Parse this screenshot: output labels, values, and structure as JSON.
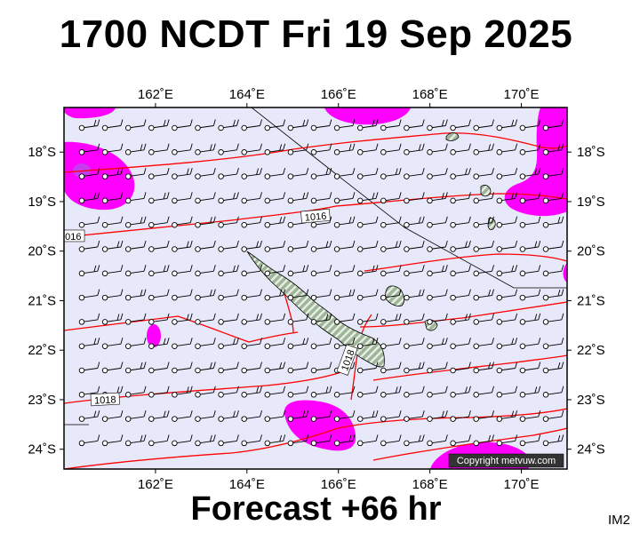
{
  "title": "1700 NCDT Fri 19 Sep 2025",
  "footer": "Forecast +66 hr",
  "corner_label": "IM2",
  "copyright": "Copyright metvuw.com",
  "colors": {
    "ocean": "#e8e8fb",
    "rain": "#ff00ff",
    "rain_light": "#c83cf0",
    "isobar": "#ff0000",
    "land": "#9fb59a",
    "land_stripe": "#e8efe3"
  },
  "map": {
    "lon_range": [
      160,
      171
    ],
    "lat_range": [
      -24.4,
      -17.1
    ],
    "lon_ticks": [
      {
        "value": 162,
        "label": "162˚E"
      },
      {
        "value": 164,
        "label": "164˚E"
      },
      {
        "value": 166,
        "label": "166˚E"
      },
      {
        "value": 168,
        "label": "168˚E"
      },
      {
        "value": 170,
        "label": "170˚E"
      }
    ],
    "lat_ticks": [
      {
        "value": -18,
        "label": "18˚S"
      },
      {
        "value": -19,
        "label": "19˚S"
      },
      {
        "value": -20,
        "label": "20˚S"
      },
      {
        "value": -21,
        "label": "21˚S"
      },
      {
        "value": -22,
        "label": "22˚S"
      },
      {
        "value": -23,
        "label": "23˚S"
      },
      {
        "value": -24,
        "label": "24˚S"
      }
    ],
    "isobar_labels": [
      {
        "text": "1016",
        "lon": 165.5,
        "lat": -19.3,
        "rotate": -5
      },
      {
        "text": "016",
        "lon": 160.2,
        "lat": -19.7,
        "rotate": 0
      },
      {
        "text": "1018",
        "lon": 160.9,
        "lat": -23.0,
        "rotate": -3
      },
      {
        "text": "1018",
        "lon": 166.2,
        "lat": -22.2,
        "rotate": -70
      }
    ]
  }
}
